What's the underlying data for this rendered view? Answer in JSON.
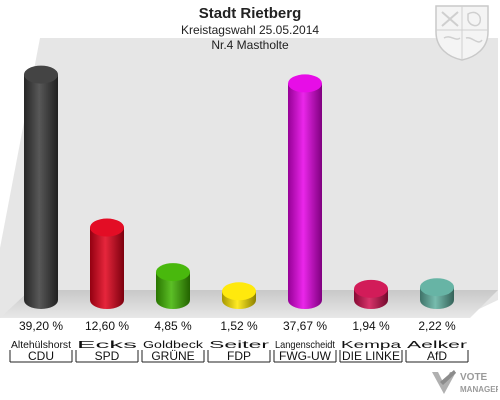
{
  "header": {
    "title": "Stadt Rietberg",
    "subtitle": "Kreistagswahl 25.05.2014",
    "district": "Nr.4 Mastholte"
  },
  "chart_data": {
    "type": "bar",
    "categories": [
      "CDU",
      "SPD",
      "GRÜNE",
      "FDP",
      "FWG-UW",
      "DIE LINKE",
      "AfD"
    ],
    "candidates": [
      "Altehülshorst",
      "Ecks",
      "Goldbeck",
      "Seiter",
      "Langenscheidt",
      "Kempa",
      "Aelker"
    ],
    "values": [
      39.2,
      12.6,
      4.85,
      1.52,
      37.67,
      1.94,
      2.22
    ],
    "value_labels": [
      "39,20 %",
      "12,60 %",
      "4,85 %",
      "1,52 %",
      "37,67 %",
      "1,94 %",
      "2,22 %"
    ],
    "colors": [
      "#3a3a3a",
      "#e2001a",
      "#3fb400",
      "#ffe800",
      "#e600e6",
      "#d01050",
      "#5fb0a0"
    ],
    "ylim": [
      0,
      40
    ]
  },
  "watermark": {
    "line1": "VOTE",
    "line2": "MANAGER"
  }
}
